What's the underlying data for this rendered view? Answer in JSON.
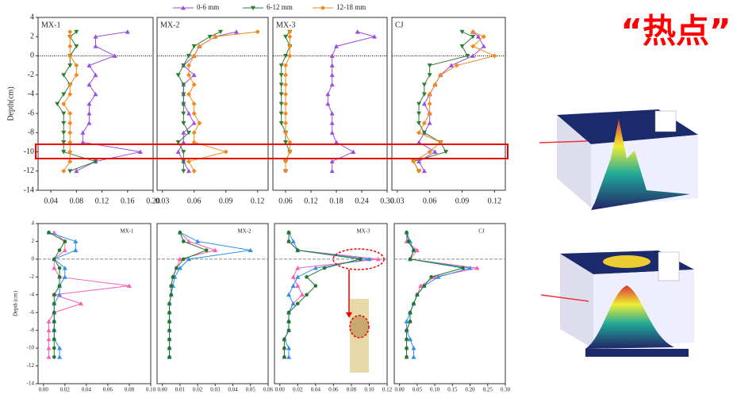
{
  "hotspot": "“热点”",
  "chart_data": [
    {
      "type": "line",
      "title": "MX-1",
      "ylabel": "Depth(cm)",
      "depths": [
        2.5,
        2,
        1,
        0,
        -1,
        -2,
        -3,
        -4,
        -5,
        -6,
        -7,
        -8,
        -9,
        -10,
        -11,
        -12
      ],
      "series": [
        {
          "name": "0-6 mm",
          "color": "#9b4de0",
          "marker": "^",
          "values": [
            0.16,
            0.11,
            0.11,
            0.14,
            0.1,
            0.11,
            0.1,
            0.11,
            0.1,
            0.1,
            0.1,
            0.09,
            0.09,
            0.18,
            0.11,
            0.08
          ]
        },
        {
          "name": "6-12 mm",
          "color": "#2e7d32",
          "marker": "v",
          "values": [
            0.08,
            0.07,
            0.08,
            0.07,
            0.07,
            0.06,
            0.07,
            0.06,
            0.05,
            0.06,
            0.06,
            0.06,
            0.06,
            0.06,
            0.11,
            0.07
          ]
        },
        {
          "name": "12-18 mm",
          "color": "#f08a1c",
          "marker": "D",
          "values": [
            0.07,
            0.07,
            0.07,
            0.07,
            0.08,
            0.08,
            0.07,
            0.07,
            0.06,
            0.07,
            0.07,
            0.07,
            0.07,
            0.07,
            0.07,
            0.06
          ]
        }
      ],
      "xlim": [
        0.02,
        0.2
      ],
      "xticks": [
        0.04,
        0.08,
        0.12,
        0.16,
        {
          "value": 0.2,
          "label": "0.20"
        }
      ],
      "ylim": [
        -14,
        4
      ],
      "yticks": [
        4,
        2,
        0,
        -2,
        -4,
        -6,
        -8,
        -10,
        -12,
        -14
      ]
    },
    {
      "type": "line",
      "title": "MX-2",
      "depths": [
        2.5,
        2,
        1,
        0,
        -1,
        -2,
        -3,
        -4,
        -5,
        -6,
        -7,
        -8,
        -9,
        -10,
        -11,
        -12
      ],
      "series": [
        {
          "color": "#9b4de0",
          "marker": "^",
          "values": [
            0.1,
            0.08,
            0.065,
            0.06,
            0.05,
            0.06,
            0.05,
            0.05,
            0.05,
            0.055,
            0.06,
            0.05,
            0.05,
            0.045,
            0.05,
            0.055
          ]
        },
        {
          "color": "#2e7d32",
          "marker": "v",
          "values": [
            0.085,
            0.075,
            0.06,
            0.055,
            0.05,
            0.045,
            0.05,
            0.05,
            0.05,
            0.05,
            0.05,
            0.055,
            0.045,
            0.05,
            0.05,
            0.05
          ]
        },
        {
          "color": "#f08a1c",
          "marker": "D",
          "values": [
            0.12,
            0.08,
            0.065,
            0.06,
            0.055,
            0.055,
            0.06,
            0.055,
            0.06,
            0.06,
            0.065,
            0.06,
            0.06,
            0.09,
            0.055,
            0.06
          ]
        }
      ],
      "xlim": [
        0.025,
        0.13
      ],
      "xticks": [
        0.03,
        0.06,
        0.09,
        0.12
      ],
      "ylim": [
        -14,
        4
      ]
    },
    {
      "type": "line",
      "title": "MX-3",
      "depths": [
        2.5,
        2,
        1,
        0,
        -1,
        -2,
        -3,
        -4,
        -5,
        -6,
        -7,
        -8,
        -9,
        -10,
        -11,
        -12
      ],
      "series": [
        {
          "color": "#9b4de0",
          "marker": "^",
          "values": [
            0.23,
            0.27,
            0.18,
            0.17,
            0.17,
            0.17,
            0.17,
            0.16,
            0.16,
            0.17,
            0.17,
            0.17,
            0.18,
            0.22,
            0.17,
            0.17
          ]
        },
        {
          "color": "#2e7d32",
          "marker": "v",
          "values": [
            0.07,
            0.06,
            0.07,
            0.06,
            0.05,
            0.05,
            0.05,
            0.05,
            0.05,
            0.05,
            0.05,
            0.06,
            0.06,
            0.07,
            0.06,
            0.06
          ]
        },
        {
          "color": "#f08a1c",
          "marker": "D",
          "values": [
            0.07,
            0.07,
            0.07,
            0.07,
            0.06,
            0.06,
            0.06,
            0.06,
            0.06,
            0.06,
            0.06,
            0.06,
            0.07,
            0.07,
            0.06,
            0.06
          ]
        }
      ],
      "xlim": [
        0.03,
        0.3
      ],
      "xticks": [
        0.06,
        0.12,
        0.18,
        0.24,
        {
          "value": 0.3,
          "label": "0.30"
        }
      ],
      "ylim": [
        -14,
        4
      ]
    },
    {
      "type": "line",
      "title": "CJ",
      "depths": [
        2.5,
        2,
        1,
        0,
        -1,
        -2,
        -3,
        -4,
        -5,
        -6,
        -7,
        -8,
        -9,
        -10,
        -11,
        -12
      ],
      "series": [
        {
          "color": "#9b4de0",
          "marker": "^",
          "values": [
            0.1,
            0.105,
            0.11,
            0.1,
            0.08,
            0.07,
            0.065,
            0.06,
            0.055,
            0.06,
            0.06,
            0.055,
            0.05,
            0.065,
            0.05,
            0.055
          ]
        },
        {
          "color": "#2e7d32",
          "marker": "v",
          "values": [
            0.09,
            0.1,
            0.09,
            0.095,
            0.06,
            0.06,
            0.055,
            0.055,
            0.05,
            0.05,
            0.05,
            0.055,
            0.07,
            0.075,
            0.045,
            0.05
          ]
        },
        {
          "color": "#f08a1c",
          "marker": "D",
          "values": [
            0.1,
            0.11,
            0.1,
            0.12,
            0.085,
            0.07,
            0.065,
            0.06,
            0.06,
            0.06,
            0.055,
            0.05,
            0.07,
            0.06,
            0.045,
            0.05
          ]
        }
      ],
      "xlim": [
        0.025,
        0.13
      ],
      "xticks": [
        0.03,
        0.06,
        0.09,
        0.12
      ],
      "ylim": [
        -14,
        4
      ]
    },
    {
      "type": "line",
      "title": "MX-1",
      "ylabel": "Depth (cm)",
      "depths": [
        3,
        2,
        1,
        0,
        -1,
        -2,
        -3,
        -4,
        -5,
        -6,
        -7,
        -8,
        -9,
        -10,
        -11
      ],
      "series": [
        {
          "color": "#ff5fb0",
          "marker": "^",
          "values": [
            0.01,
            0.02,
            0.02,
            0.01,
            0.01,
            0.015,
            0.08,
            0.01,
            0.035,
            0.01,
            0.005,
            0.005,
            0.005,
            0.005,
            0.005
          ]
        },
        {
          "color": "#2f8fe8",
          "marker": "^",
          "values": [
            0.005,
            0.03,
            0.03,
            0.01,
            0.02,
            0.02,
            0.015,
            0.015,
            0.01,
            0.01,
            0.01,
            0.01,
            0.01,
            0.015,
            0.015
          ]
        },
        {
          "color": "#1e7a2e",
          "marker": "o",
          "values": [
            0.005,
            0.02,
            0.015,
            0.01,
            0.015,
            0.015,
            0.015,
            0.01,
            0.01,
            0.01,
            0.01,
            0.01,
            0.01,
            0.01,
            0.01
          ]
        }
      ],
      "xlim": [
        -0.005,
        0.1
      ],
      "xticks": [
        {
          "value": 0,
          "label": "0.00"
        },
        0.02,
        0.04,
        0.06,
        0.08,
        {
          "value": 0.1,
          "label": "0.10"
        }
      ],
      "ylim": [
        -14,
        4
      ],
      "yticks": [
        4,
        2,
        0,
        -2,
        -4,
        -6,
        -8,
        -10,
        -12,
        -14
      ]
    },
    {
      "type": "line",
      "title": "MX-2",
      "depths": [
        3,
        2,
        1,
        0,
        -1,
        -2,
        -3,
        -4,
        -5,
        -6,
        -7,
        -8,
        -9,
        -10,
        -11
      ],
      "series": [
        {
          "color": "#ff5fb0",
          "marker": "^",
          "values": [
            0.01,
            0.015,
            0.03,
            0.01,
            0.008,
            0.006,
            0.005,
            0.005,
            0.004,
            0.004,
            0.004,
            0.004,
            0.004,
            0.004,
            0.004
          ]
        },
        {
          "color": "#2f8fe8",
          "marker": "^",
          "values": [
            0.01,
            0.02,
            0.05,
            0.015,
            0.01,
            0.007,
            0.006,
            0.005,
            0.004,
            0.004,
            0.004,
            0.004,
            0.004,
            0.004,
            0.004
          ]
        },
        {
          "color": "#1e7a2e",
          "marker": "o",
          "values": [
            0.01,
            0.012,
            0.025,
            0.012,
            0.008,
            0.006,
            0.005,
            0.005,
            0.004,
            0.004,
            0.004,
            0.004,
            0.004,
            0.004,
            0.004
          ]
        }
      ],
      "xlim": [
        -0.003,
        0.06
      ],
      "xticks": [
        {
          "value": 0,
          "label": "0.00"
        },
        0.01,
        0.02,
        0.03,
        0.04,
        0.05,
        0.06
      ],
      "ylim": [
        -14,
        4
      ]
    },
    {
      "type": "line",
      "title": "MX-3",
      "depths": [
        3,
        2,
        1,
        0,
        -1,
        -2,
        -3,
        -4,
        -5,
        -6,
        -7,
        -8,
        -9,
        -10,
        -11
      ],
      "series": [
        {
          "color": "#ff5fb0",
          "marker": "^",
          "values": [
            0.01,
            0.01,
            0.02,
            0.11,
            0.02,
            0.015,
            0.02,
            0.025,
            0.015,
            0.01,
            0.01,
            0.01,
            0.005,
            0.005,
            0.005
          ]
        },
        {
          "color": "#2f8fe8",
          "marker": "^",
          "values": [
            0.01,
            0.015,
            0.02,
            0.1,
            0.04,
            0.02,
            0.015,
            0.01,
            0.015,
            0.01,
            0.01,
            0.01,
            0.005,
            0.01,
            0.01
          ]
        },
        {
          "color": "#1e7a2e",
          "marker": "o",
          "values": [
            0.01,
            0.01,
            0.02,
            0.09,
            0.05,
            0.03,
            0.04,
            0.03,
            0.02,
            0.01,
            0.01,
            0.01,
            0.005,
            0.005,
            0.005
          ]
        }
      ],
      "xlim": [
        -0.006,
        0.12
      ],
      "xticks": [
        {
          "value": 0,
          "label": "0.00"
        },
        0.02,
        0.04,
        0.06,
        0.08,
        {
          "value": 0.1,
          "label": "0.10"
        },
        0.12
      ],
      "ylim": [
        -14,
        4
      ]
    },
    {
      "type": "line",
      "title": "CJ",
      "depths": [
        3,
        2,
        1,
        0,
        -1,
        -2,
        -3,
        -4,
        -5,
        -6,
        -7,
        -8,
        -9,
        -10,
        -11
      ],
      "series": [
        {
          "color": "#ff5fb0",
          "marker": "^",
          "values": [
            0.02,
            0.02,
            0.05,
            0.03,
            0.22,
            0.1,
            0.06,
            0.05,
            0.04,
            0.03,
            0.03,
            0.02,
            0.02,
            0.02,
            0.02
          ]
        },
        {
          "color": "#2f8fe8",
          "marker": "^",
          "values": [
            0.02,
            0.03,
            0.04,
            0.03,
            0.2,
            0.11,
            0.07,
            0.05,
            0.04,
            0.03,
            0.02,
            0.02,
            0.03,
            0.04,
            0.04
          ]
        },
        {
          "color": "#1e7a2e",
          "marker": "o",
          "values": [
            0.02,
            0.025,
            0.04,
            0.03,
            0.18,
            0.09,
            0.07,
            0.05,
            0.04,
            0.03,
            0.03,
            0.02,
            0.02,
            0.02,
            0.02
          ]
        }
      ],
      "xlim": [
        -0.015,
        0.3
      ],
      "xticks": [
        {
          "value": 0,
          "label": "0.00"
        },
        0.05,
        {
          "value": 0.1,
          "label": "0.10"
        },
        0.15,
        {
          "value": 0.2,
          "label": "0.20"
        },
        0.25,
        {
          "value": 0.3,
          "label": "0.30"
        }
      ],
      "ylim": [
        -14,
        4
      ]
    }
  ]
}
